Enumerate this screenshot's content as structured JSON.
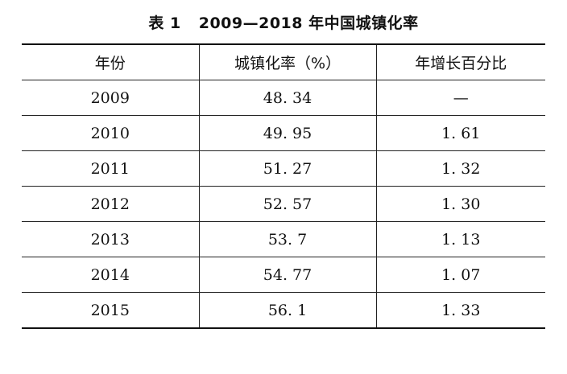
{
  "table": {
    "caption_label": "表 1",
    "caption_text": "2009—2018 年中国城镇化率",
    "headers": [
      "年份",
      "城镇化率（%）",
      "年增长百分比"
    ],
    "rows": [
      [
        "2009",
        "48. 34",
        "—"
      ],
      [
        "2010",
        "49. 95",
        "1. 61"
      ],
      [
        "2011",
        "51. 27",
        "1. 32"
      ],
      [
        "2012",
        "52. 57",
        "1. 30"
      ],
      [
        "2013",
        "53. 7",
        "1. 13"
      ],
      [
        "2014",
        "54. 77",
        "1. 07"
      ],
      [
        "2015",
        "56. 1",
        "1. 33"
      ]
    ]
  }
}
